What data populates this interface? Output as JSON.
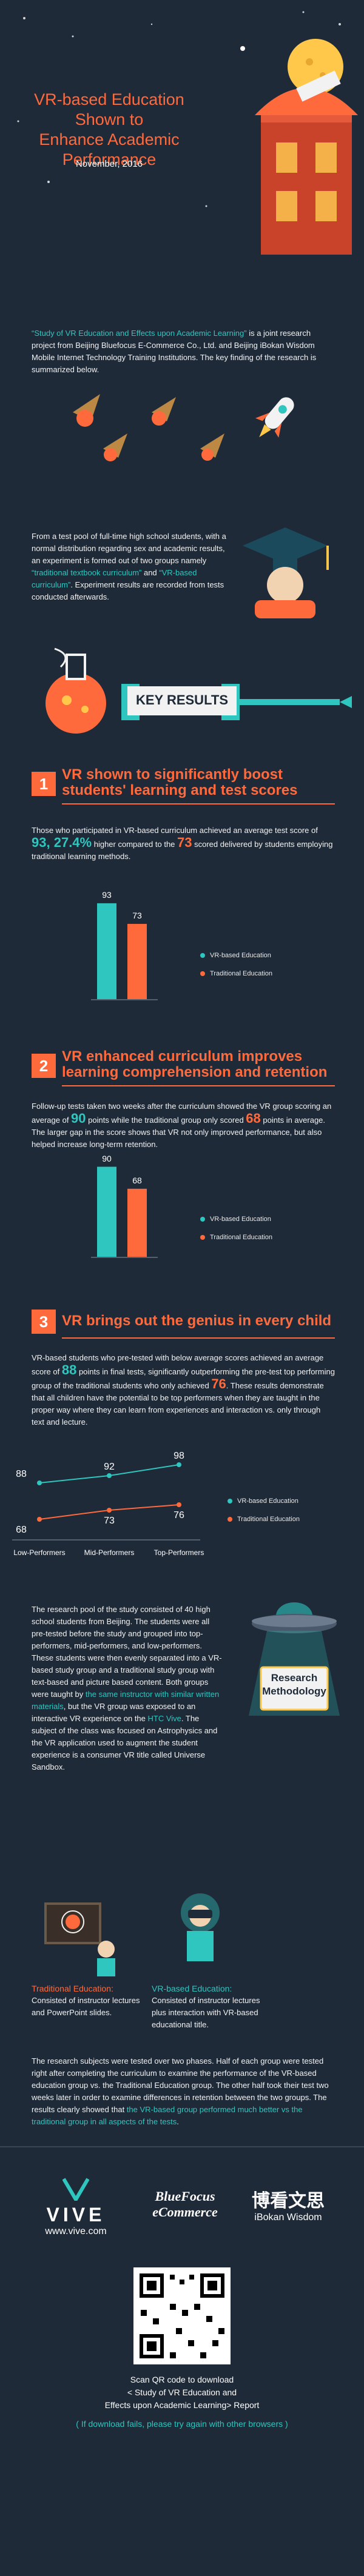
{
  "header": {
    "title_line1": "VR-based Education Shown to",
    "title_line2": "Enhance Academic Performance",
    "date": "November, 2016"
  },
  "intro": {
    "study_title": "“Study of VR Education and Effects upon Academic Learning”",
    "text_after_title": " is a joint research project from Beijing Bluefocus E-Commerce Co., Ltd. and Beijing iBokan Wisdom Mobile Internet Technology Training Institutions. The key finding of the research is summarized below."
  },
  "method": {
    "text1": "From a test pool of full-time high school students, with a normal distribution regarding sex and academic results, an experiment is formed out of two groups namely ",
    "group_traditional": "“traditional textbook curriculum”",
    "and": " and ",
    "group_vr": "“VR-based curriculum”",
    "text2": ". Experiment results are recorded from tests conducted afterwards."
  },
  "key_results_label": "KEY RESULTS",
  "section1": {
    "number": "1",
    "title_line1": "VR shown to significantly boost",
    "title_line2": "students' learning and test scores",
    "text_a": "Those who participated in VR-based curriculum achieved an average test score of ",
    "score_vr": "93",
    "sep": ", ",
    "percent": "27.4%",
    "text_b": " higher compared to the ",
    "score_trad": "73",
    "text_c": " scored delivered by students employing traditional learning methods.",
    "legend_vr": "VR-based Education",
    "legend_trad": "Traditional Education"
  },
  "section2": {
    "number": "2",
    "title_line1": "VR enhanced curriculum improves",
    "title_line2": "learning comprehension and retention",
    "text_a": "Follow-up tests taken two weeks after the curriculum showed the VR group scoring an average of ",
    "score_vr": "90",
    "text_b": " points while the traditional group only scored ",
    "score_trad": "68",
    "text_c": " points in average. The larger gap in the score shows that VR not only improved performance, but also helped increase long-term retention.",
    "legend_vr": "VR-based Education",
    "legend_trad": "Traditional Education"
  },
  "section3": {
    "number": "3",
    "title": "VR brings out the genius in every child",
    "text_a": "VR-based students who pre-tested with below average scores achieved an average score of ",
    "score_low": "88",
    "text_b": " points in final tests, significantly outperforming the pre-test top performing group of the traditional students who only achieved ",
    "score_top": "76",
    "text_c": ". These results demonstrate that all children have the potential to be top performers when they are taught in the proper way where they can learn from experiences and interaction vs. only through text and lecture.",
    "legend_vr": "VR-based Education",
    "legend_trad": "Traditional Education"
  },
  "chart_data": [
    {
      "type": "bar",
      "categories": [
        "VR-based Education",
        "Traditional Education"
      ],
      "values": [
        93,
        73
      ],
      "colors": [
        "#2fc6c0",
        "#ff6a3d"
      ],
      "ylim": [
        0,
        100
      ]
    },
    {
      "type": "bar",
      "categories": [
        "VR-based Education",
        "Traditional Education"
      ],
      "values": [
        90,
        68
      ],
      "colors": [
        "#2fc6c0",
        "#ff6a3d"
      ],
      "ylim": [
        0,
        100
      ]
    },
    {
      "type": "line",
      "categories": [
        "Low-Performers",
        "Mid-Performers",
        "Top-Performers"
      ],
      "series": [
        {
          "name": "VR-based Education",
          "values": [
            88,
            92,
            98
          ],
          "color": "#2fc6c0"
        },
        {
          "name": "Traditional Education",
          "values": [
            68,
            73,
            76
          ],
          "color": "#ff6a3d"
        }
      ],
      "ylim": [
        60,
        100
      ]
    }
  ],
  "methodology": {
    "label_line1": "Research",
    "label_line2": "Methodology",
    "text_a": "The research pool of the study consisted of 40 high school students from Beijing. The students were all pre-tested before the study and grouped into top-performers, mid-performers, and low-performers. These students were then evenly separated into a VR-based study group and a traditional study group with text-based and picture based content. Both groups were taught by ",
    "same_instructor": "the same instructor with similar written materials",
    "text_b": ", but the VR group was exposed to an interactive VR experience on the ",
    "htc_vive": "HTC Vive",
    "text_c": ". The subject of the class was focused on Astrophysics and the VR application used to augment the student experience is a consumer VR title called Universe Sandbox.",
    "trad_title": "Traditional Education:",
    "trad_text": "Consisted of instructor lectures and PowerPoint slides.",
    "vr_title": "VR-based Education:",
    "vr_text": "Consisted of instructor lectures plus interaction with VR-based educational title."
  },
  "conclusion": {
    "text_a": "The research subjects were tested over two phases. Half of each group were tested right after completing the curriculum to examine the performance of the VR-based education group vs. the Traditional Education group. The other half took their test two weeks later in order to examine differences in retention between the two groups. The results clearly showed that ",
    "highlight": "the VR-based group performed much better vs the traditional group in all aspects of the tests",
    "text_b": "."
  },
  "footer": {
    "vive": "VIVE",
    "vive_url": "www.vive.com",
    "bluefocus_line1": "BlueFocus",
    "bluefocus_line2": "eCommerce",
    "ibokan_cn": "博看文思",
    "ibokan_en": "iBokan Wisdom",
    "qr_line1": "Scan QR code to download",
    "qr_line2": "< Study of VR Education and",
    "qr_line3": "Effects upon Academic Learning> Report",
    "fail_note": "( If download fails, please try again with other browsers )"
  }
}
